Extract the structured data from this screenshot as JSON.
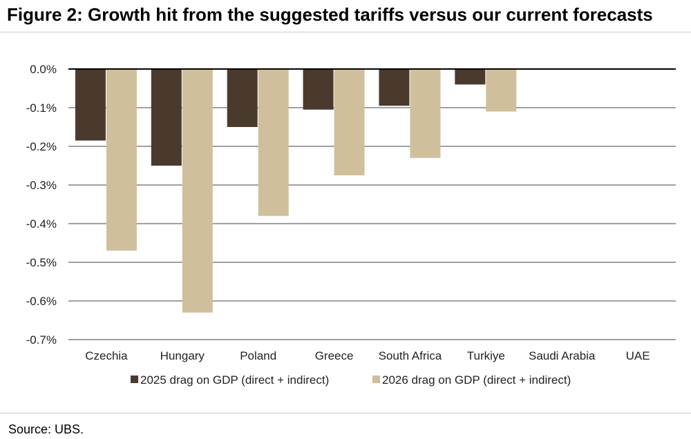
{
  "figure": {
    "title": "Figure 2: Growth hit from the suggested tariffs versus our current forecasts",
    "source": "Source: UBS."
  },
  "colors": {
    "series_2025": "#4a3a2e",
    "series_2026": "#d0bf9c",
    "gridline": "#404040",
    "zero_line": "#000000"
  },
  "chart_data": {
    "type": "bar",
    "categories": [
      "Czechia",
      "Hungary",
      "Poland",
      "Greece",
      "South Africa",
      "Turkiye",
      "Saudi Arabia",
      "UAE"
    ],
    "series": [
      {
        "name": "2025 drag on GDP (direct + indirect)",
        "values": [
          -0.185,
          -0.25,
          -0.15,
          -0.105,
          -0.095,
          -0.04,
          0,
          0
        ]
      },
      {
        "name": "2026 drag on GDP (direct + indirect)",
        "values": [
          -0.47,
          -0.63,
          -0.38,
          -0.275,
          -0.23,
          -0.11,
          0,
          0
        ]
      }
    ],
    "y_ticks": [
      "0.0%",
      "-0.1%",
      "-0.2%",
      "-0.3%",
      "-0.4%",
      "-0.5%",
      "-0.6%",
      "-0.7%"
    ],
    "y_tick_values": [
      0,
      -0.1,
      -0.2,
      -0.3,
      -0.4,
      -0.5,
      -0.6,
      -0.7
    ],
    "ylim": [
      -0.7,
      0
    ],
    "xlabel": "",
    "ylabel": "",
    "grid": true,
    "legend_position": "bottom"
  }
}
